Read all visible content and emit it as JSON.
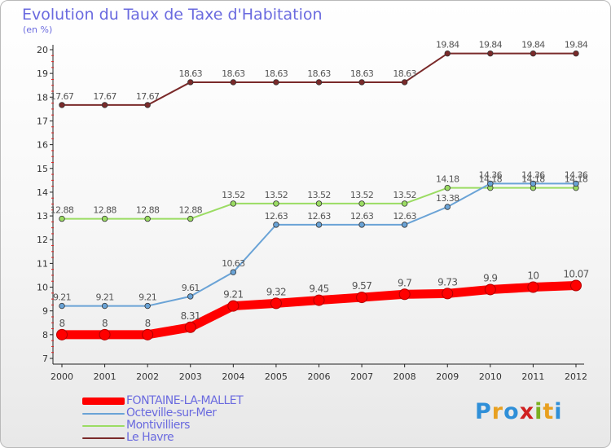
{
  "title": "Evolution du Taux de Taxe d'Habitation",
  "unit": "(en %)",
  "brand": "Proxiti",
  "colors": {
    "title": "#6a6adf",
    "FONTAINE-LA-MALLET": "#ff0000",
    "Octeville-sur-Mer": "#6aa3d6",
    "Montivilliers": "#9bdc63",
    "Le Havre": "#7a2a2a"
  },
  "chart_data": {
    "type": "line",
    "title": "Evolution du Taux de Taxe d'Habitation",
    "ylabel": "(en %)",
    "xlabel": "",
    "x": [
      "2000",
      "2001",
      "2002",
      "2003",
      "2004",
      "2005",
      "2006",
      "2007",
      "2008",
      "2009",
      "2010",
      "2011",
      "2012"
    ],
    "ylim": [
      7,
      20
    ],
    "yticks": [
      7,
      8,
      9,
      10,
      11,
      12,
      13,
      14,
      15,
      16,
      17,
      18,
      19,
      20
    ],
    "grid": false,
    "legend_position": "bottom-left",
    "series": [
      {
        "name": "FONTAINE-LA-MALLET",
        "values": [
          8,
          8,
          8,
          8.31,
          9.21,
          9.32,
          9.45,
          9.57,
          9.7,
          9.73,
          9.9,
          10,
          10.07
        ],
        "labels": [
          "8",
          "8",
          "8",
          "8.31",
          "9.21",
          "9.32",
          "9.45",
          "9.57",
          "9.7",
          "9.73",
          "9.9",
          "10",
          "10.07"
        ]
      },
      {
        "name": "Octeville-sur-Mer",
        "values": [
          9.21,
          9.21,
          9.21,
          9.61,
          10.63,
          12.63,
          12.63,
          12.63,
          12.63,
          13.38,
          14.36,
          14.36,
          14.36
        ],
        "labels": [
          "9.21",
          "9.21",
          "9.21",
          "9.61",
          "10.63",
          "12.63",
          "12.63",
          "12.63",
          "12.63",
          "13.38",
          "14.36",
          "14.36",
          "14.36"
        ]
      },
      {
        "name": "Montivilliers",
        "values": [
          12.88,
          12.88,
          12.88,
          12.88,
          13.52,
          13.52,
          13.52,
          13.52,
          13.52,
          14.18,
          14.18,
          14.18,
          14.18
        ],
        "labels": [
          "12.88",
          "12.88",
          "12.88",
          "12.88",
          "13.52",
          "13.52",
          "13.52",
          "13.52",
          "13.52",
          "14.18",
          "14.18",
          "14.18",
          "14.18"
        ]
      },
      {
        "name": "Le Havre",
        "values": [
          17.67,
          17.67,
          17.67,
          18.63,
          18.63,
          18.63,
          18.63,
          18.63,
          18.63,
          19.84,
          19.84,
          19.84,
          19.84
        ],
        "labels": [
          "17.67",
          "17.67",
          "17.67",
          "18.63",
          "18.63",
          "18.63",
          "18.63",
          "18.63",
          "18.63",
          "19.84",
          "19.84",
          "19.84",
          "19.84"
        ]
      }
    ]
  }
}
